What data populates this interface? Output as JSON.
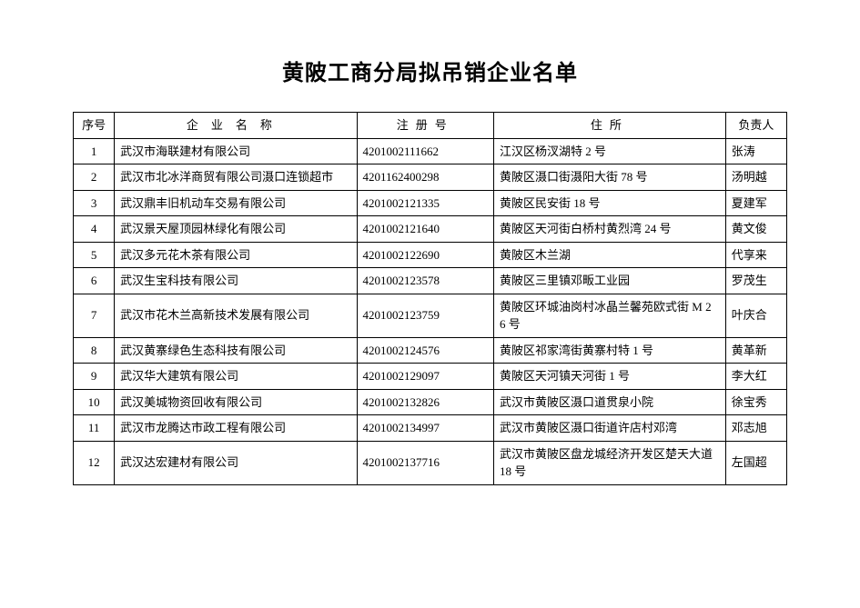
{
  "title": "黄陂工商分局拟吊销企业名单",
  "columns": [
    "序号",
    "企业名称",
    "注册号",
    "住所",
    "负责人"
  ],
  "rows": [
    {
      "idx": "1",
      "name": "武汉市海联建材有限公司",
      "reg": "4201002111662",
      "addr": "江汉区杨汊湖特 2 号",
      "person": "张涛"
    },
    {
      "idx": "2",
      "name": "武汉市北冰洋商贸有限公司滠口连锁超市",
      "reg": "4201162400298",
      "addr": "黄陂区滠口街滠阳大街 78 号",
      "person": "汤明越"
    },
    {
      "idx": "3",
      "name": "武汉鼎丰旧机动车交易有限公司",
      "reg": "4201002121335",
      "addr": "黄陂区民安街 18 号",
      "person": "夏建军"
    },
    {
      "idx": "4",
      "name": "武汉景天屋顶园林绿化有限公司",
      "reg": "4201002121640",
      "addr": "黄陂区天河街白桥村黄烈湾 24 号",
      "person": "黄文俊"
    },
    {
      "idx": "5",
      "name": "武汉多元花木茶有限公司",
      "reg": "4201002122690",
      "addr": "黄陂区木兰湖",
      "person": "代享来"
    },
    {
      "idx": "6",
      "name": "武汉生宝科技有限公司",
      "reg": "4201002123578",
      "addr": "黄陂区三里镇邓畈工业园",
      "person": "罗茂生"
    },
    {
      "idx": "7",
      "name": "武汉市花木兰高新技术发展有限公司",
      "reg": "4201002123759",
      "addr": "黄陂区环城油岗村冰晶兰馨苑欧式街 M 2 6 号",
      "person": "叶庆合"
    },
    {
      "idx": "8",
      "name": "武汉黄寨绿色生态科技有限公司",
      "reg": "4201002124576",
      "addr": "黄陂区祁家湾街黄寨村特 1 号",
      "person": "黄革新"
    },
    {
      "idx": "9",
      "name": "武汉华大建筑有限公司",
      "reg": "4201002129097",
      "addr": "黄陂区天河镇天河街 1 号",
      "person": "李大红"
    },
    {
      "idx": "10",
      "name": "武汉美城物资回收有限公司",
      "reg": "4201002132826",
      "addr": "武汉市黄陂区滠口道贯泉小院",
      "person": "徐宝秀"
    },
    {
      "idx": "11",
      "name": "武汉市龙腾达市政工程有限公司",
      "reg": "4201002134997",
      "addr": "武汉市黄陂区滠口街道许店村邓湾",
      "person": "邓志旭"
    },
    {
      "idx": "12",
      "name": "武汉达宏建材有限公司",
      "reg": "4201002137716",
      "addr": "武汉市黄陂区盘龙城经济开发区楚天大道 18 号",
      "person": "左国超"
    }
  ]
}
